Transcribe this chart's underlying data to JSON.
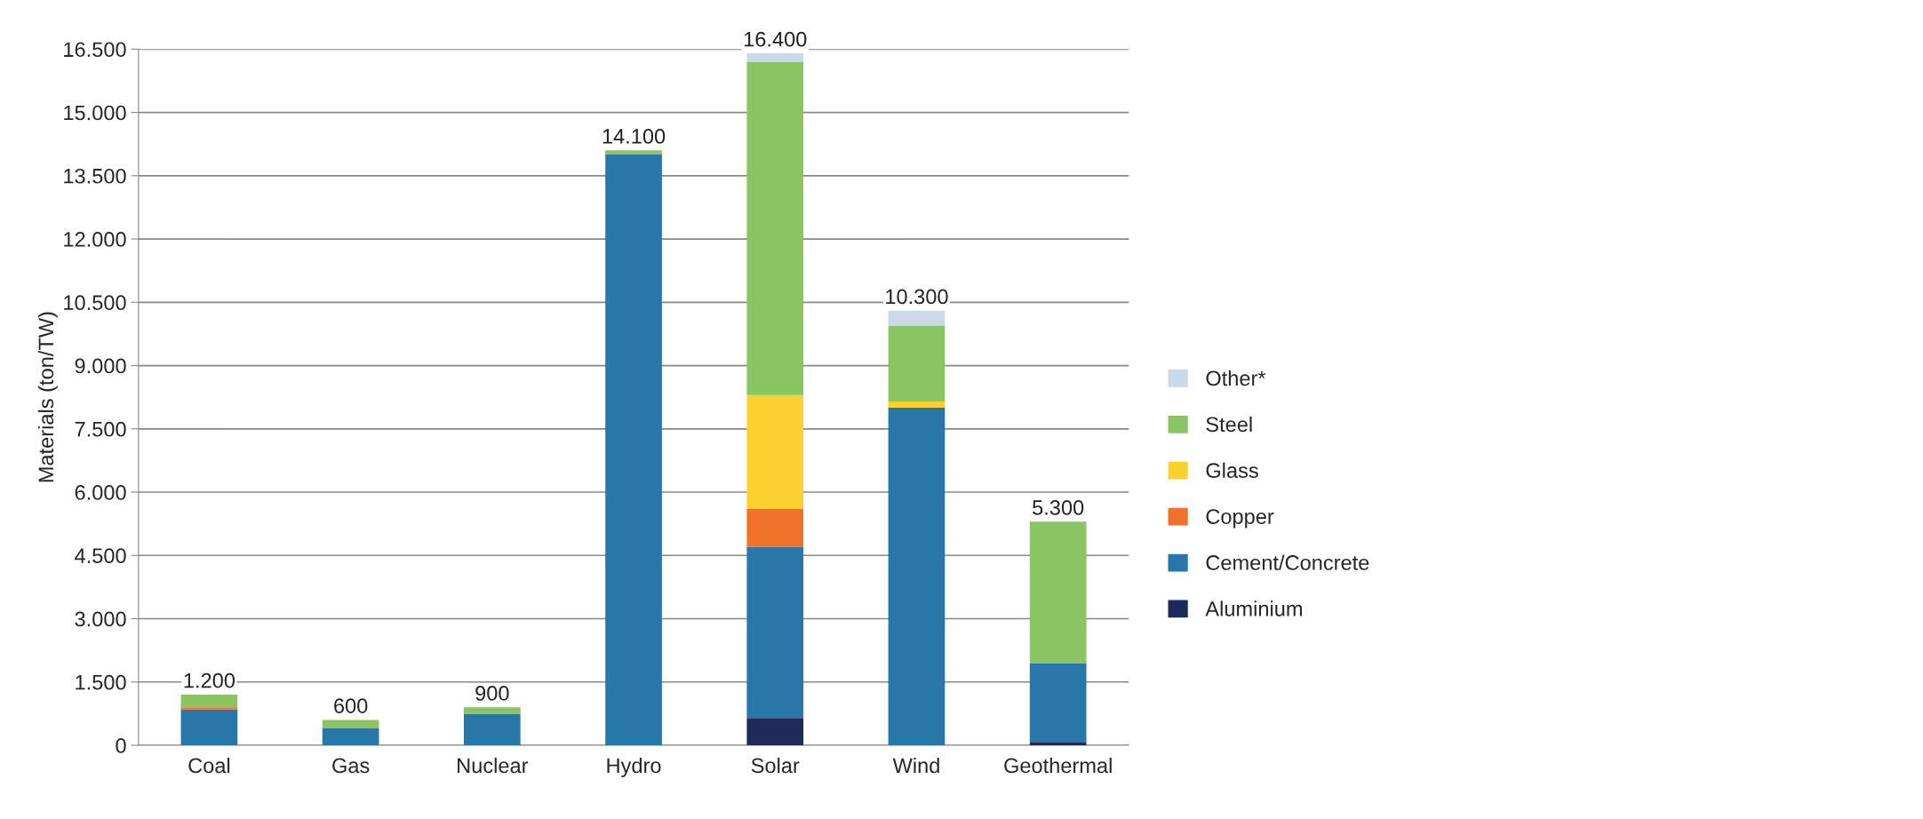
{
  "chart_data": {
    "type": "bar",
    "stacked": true,
    "ylabel": "Materials (ton/TW)",
    "categories": [
      "Coal",
      "Gas",
      "Nuclear",
      "Hydro",
      "Solar",
      "Wind",
      "Geothermal"
    ],
    "series": [
      {
        "name": "Aluminium",
        "color": "#1e2a5a",
        "values": [
          0,
          0,
          0,
          0,
          650,
          0,
          80
        ]
      },
      {
        "name": "Cement/Concrete",
        "color": "#2877a8",
        "values": [
          850,
          400,
          750,
          14000,
          4050,
          8000,
          1870
        ]
      },
      {
        "name": "Copper",
        "color": "#f07128",
        "values": [
          50,
          0,
          0,
          0,
          900,
          0,
          0
        ]
      },
      {
        "name": "Glass",
        "color": "#fcd02f",
        "values": [
          0,
          0,
          0,
          0,
          2700,
          150,
          0
        ]
      },
      {
        "name": "Steel",
        "color": "#8bc462",
        "values": [
          300,
          200,
          150,
          100,
          7900,
          1800,
          3350
        ]
      },
      {
        "name": "Other*",
        "color": "#c9d9e8",
        "values": [
          0,
          0,
          0,
          0,
          200,
          350,
          0
        ]
      }
    ],
    "totals": [
      "1.200",
      "600",
      "900",
      "14.100",
      "16.400",
      "10.300",
      "5.300"
    ],
    "ylim": [
      0,
      16500
    ],
    "yticks": [
      0,
      {
        "value": 1500,
        "label": "1.500"
      },
      {
        "value": 3000,
        "label": "3.000"
      },
      {
        "value": 4500,
        "label": "4.500"
      },
      {
        "value": 6000,
        "label": "6.000"
      },
      {
        "value": 7500,
        "label": "7.500"
      },
      {
        "value": 9000,
        "label": "9.000"
      },
      {
        "value": 10500,
        "label": "10.500"
      },
      {
        "value": 12000,
        "label": "12.000"
      },
      {
        "value": 13500,
        "label": "13.500"
      },
      {
        "value": 15000,
        "label": "15.000"
      },
      {
        "value": 16500,
        "label": "16.500"
      }
    ],
    "grid": "y",
    "legend": "right"
  }
}
